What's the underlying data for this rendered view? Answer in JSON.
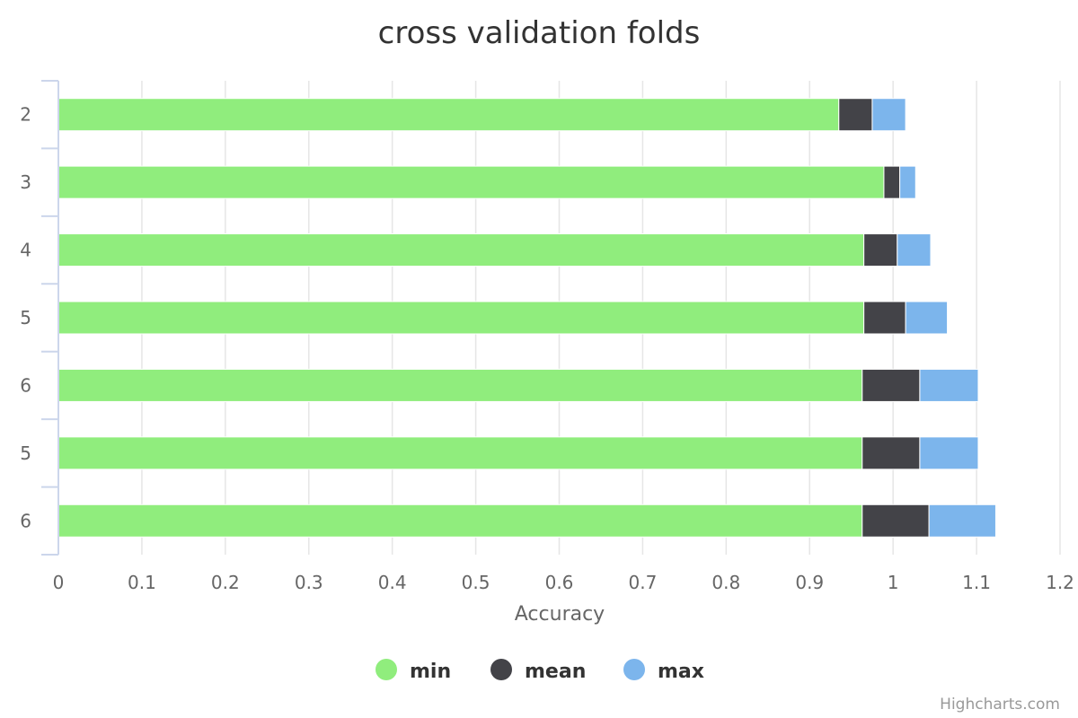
{
  "chart_data": {
    "type": "bar",
    "orientation": "horizontal",
    "stacked": true,
    "title": "cross validation folds",
    "xlabel": "Accuracy",
    "ylabel": "",
    "categories": [
      "2",
      "3",
      "4",
      "5",
      "6",
      "5",
      "6"
    ],
    "series": [
      {
        "name": "min",
        "color": "#90ed7d",
        "values": [
          0.935,
          0.989,
          0.965,
          0.965,
          0.963,
          0.963,
          0.963
        ]
      },
      {
        "name": "mean",
        "color": "#434348",
        "values": [
          0.04,
          0.019,
          0.04,
          0.05,
          0.069,
          0.069,
          0.08
        ]
      },
      {
        "name": "max",
        "color": "#7cb5ec",
        "values": [
          0.04,
          0.019,
          0.04,
          0.05,
          0.07,
          0.07,
          0.08
        ]
      }
    ],
    "xlim": [
      0,
      1.2
    ],
    "xticks": [
      "0",
      "0.1",
      "0.2",
      "0.3",
      "0.4",
      "0.5",
      "0.6",
      "0.7",
      "0.8",
      "0.9",
      "1",
      "1.1",
      "1.2"
    ],
    "grid": true,
    "legend": "bottom-center"
  },
  "credits": "Highcharts.com"
}
